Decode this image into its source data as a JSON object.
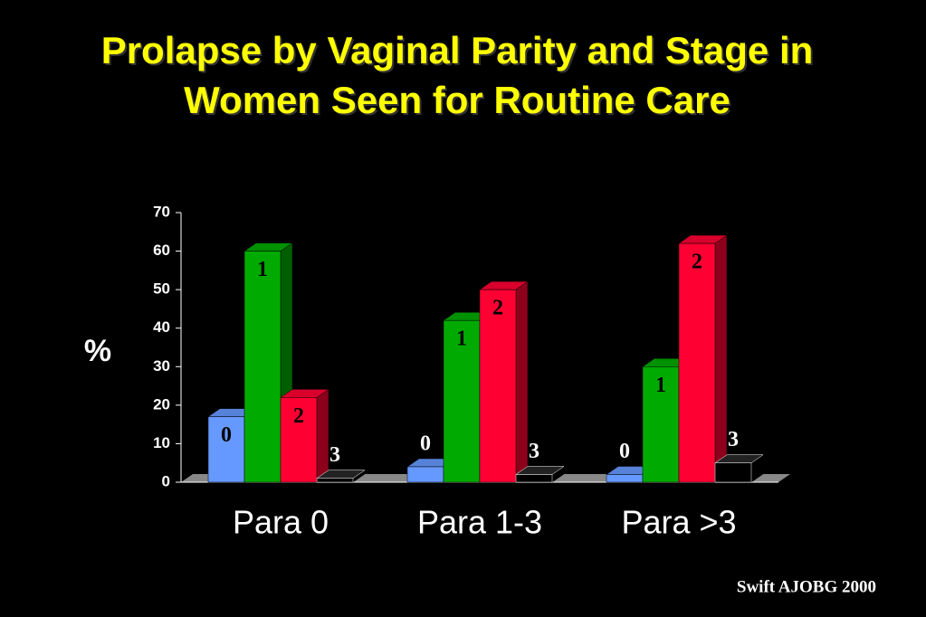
{
  "chart_data": {
    "type": "bar3d",
    "title": "Prolapse by Vaginal Parity and Stage in Women Seen for Routine Care",
    "y_label": "%",
    "source": "Swift AJOBG 2000",
    "categories": [
      "Para 0",
      "Para 1-3",
      "Para >3"
    ],
    "series": [
      {
        "name": "0",
        "color": "#6699ff",
        "values": [
          17,
          4,
          2
        ]
      },
      {
        "name": "1",
        "color": "#00aa00",
        "values": [
          60,
          42,
          30
        ]
      },
      {
        "name": "2",
        "color": "#ff0033",
        "values": [
          22,
          50,
          62
        ]
      },
      {
        "name": "3",
        "color": "#000000",
        "values": [
          1,
          2,
          5
        ]
      }
    ],
    "ylim": [
      0,
      70
    ],
    "yticks": [
      0,
      10,
      20,
      30,
      40,
      50,
      60,
      70
    ]
  }
}
